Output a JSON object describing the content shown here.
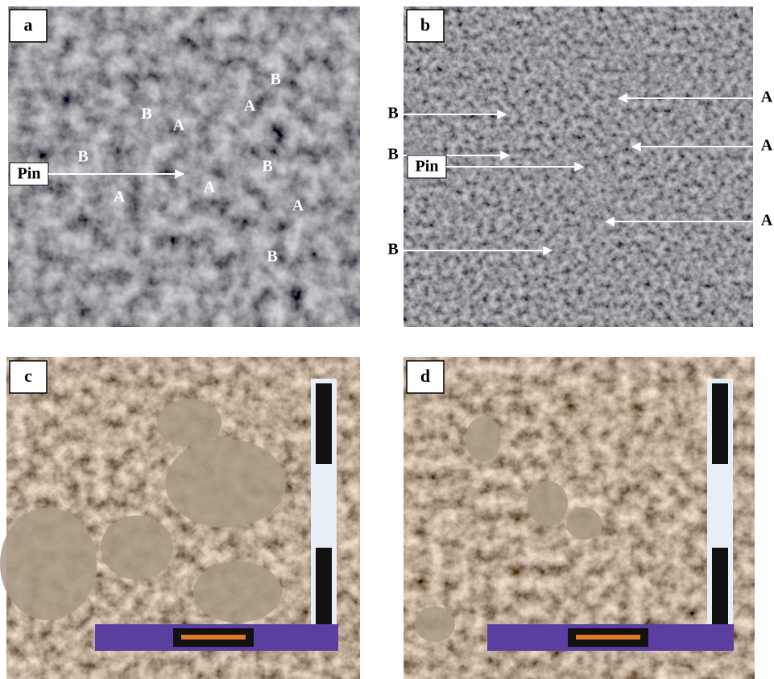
{
  "panels": [
    {
      "label": "a",
      "annotations": [
        "B",
        "A",
        "B",
        "A",
        "B",
        "Pin",
        "B",
        "A",
        "A",
        "A",
        "B"
      ]
    },
    {
      "label": "b",
      "annotations": [
        "B",
        "A",
        "B",
        "A",
        "Pin",
        "A",
        "B"
      ]
    },
    {
      "label": "c",
      "annotations": []
    },
    {
      "label": "d",
      "annotations": []
    }
  ]
}
